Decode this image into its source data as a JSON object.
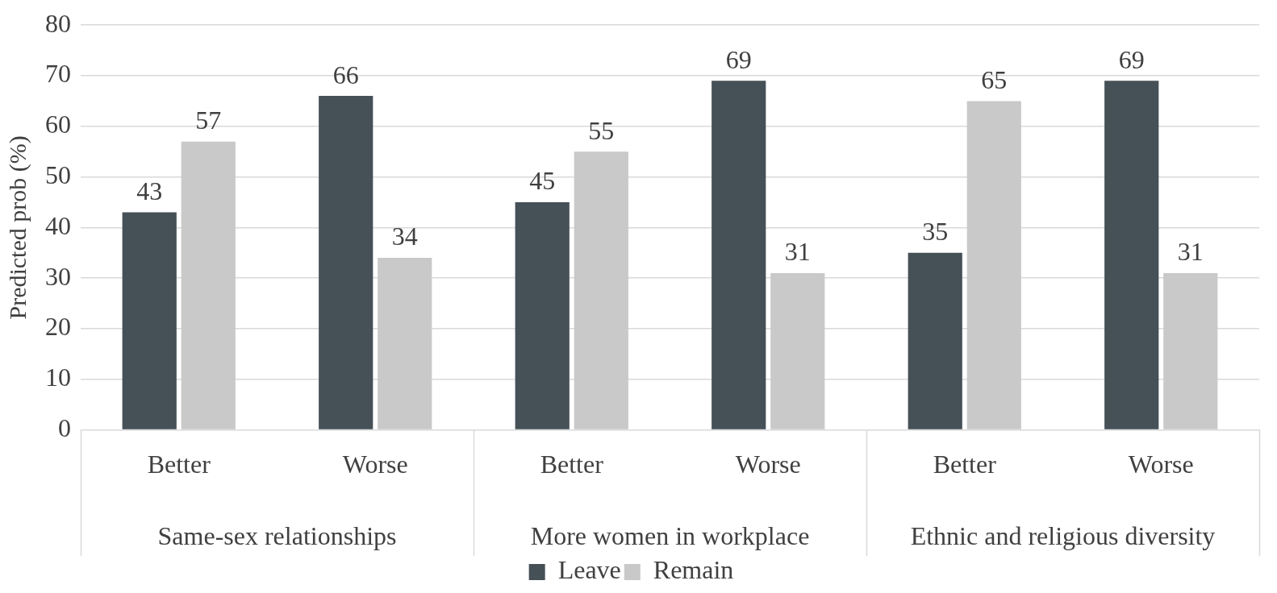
{
  "chart_data": {
    "type": "bar",
    "ylabel": "Predicted prob (%)",
    "categories": [
      "Better",
      "Worse",
      "Better",
      "Worse",
      "Better",
      "Worse"
    ],
    "series": [
      {
        "name": "Leave",
        "color": "#455057",
        "values": [
          43,
          66,
          45,
          69,
          35,
          69
        ]
      },
      {
        "name": "Remain",
        "color": "#c9c9c9",
        "values": [
          57,
          34,
          55,
          31,
          65,
          31
        ]
      }
    ],
    "annotations": [
      "Same-sex relationships",
      "More women in workplace",
      "Ethnic and religious diversity"
    ],
    "ylim": [
      0,
      80
    ],
    "yticks": [
      0,
      10,
      20,
      30,
      40,
      50,
      60,
      70,
      80
    ],
    "grid": "y",
    "data_labels": true,
    "legend": "bottom"
  }
}
